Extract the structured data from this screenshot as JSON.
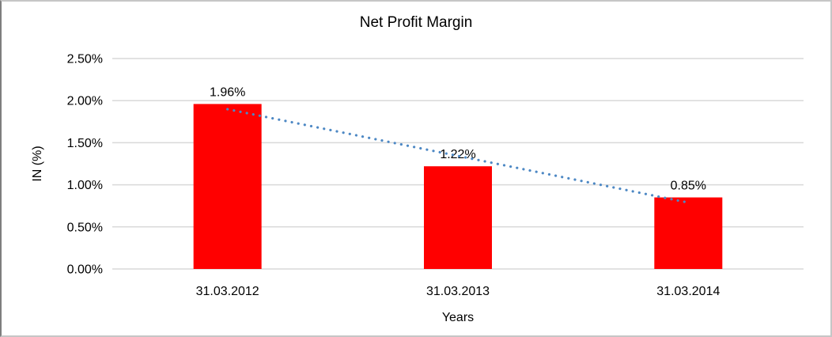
{
  "window": {
    "background": "#ffffff",
    "border_color": "#c6c6c6"
  },
  "chart_data": {
    "type": "bar",
    "title": "Net Profit Margin",
    "categories": [
      "31.03.2012",
      "31.03.2013",
      "31.03.2014"
    ],
    "values": [
      1.96,
      1.22,
      0.85
    ],
    "data_labels": [
      "1.96%",
      "1.22%",
      "0.85%"
    ],
    "xlabel": "Years",
    "ylabel": "IN (%)",
    "ylim": [
      0,
      2.5
    ],
    "ytick_step": 0.5,
    "ytick_labels": [
      "0.00%",
      "0.50%",
      "1.00%",
      "1.50%",
      "2.00%",
      "2.50%"
    ],
    "grid": true,
    "legend": "none",
    "bar_color": "#ff0000",
    "gridline_color": "#d9d9d9",
    "axis_line_color": "#d9d9d9",
    "text_color": "#000000",
    "trendline": {
      "type": "linear",
      "style": "dotted",
      "color": "#4d88c4"
    }
  }
}
